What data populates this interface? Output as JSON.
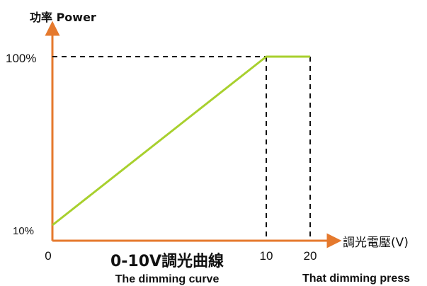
{
  "colors": {
    "axis": "#e5792d",
    "curve": "#a8d02e",
    "guide": "#111111"
  },
  "chart_data": {
    "type": "line",
    "title": "0-10V調光曲線",
    "subtitle": "The dimming curve",
    "ylabel": "功率 Power",
    "xlabel": "調光電壓(V)",
    "xlabel_secondary": "That dimming press",
    "x_ticks": [
      "0",
      "10",
      "20"
    ],
    "y_ticks": [
      "10%",
      "100%"
    ],
    "xlim": [
      0,
      20
    ],
    "ylim": [
      10,
      100
    ],
    "series": [
      {
        "x": [
          0,
          10,
          20
        ],
        "y": [
          10,
          100,
          100
        ]
      }
    ],
    "guides": [
      {
        "type": "vertical",
        "x": 10
      },
      {
        "type": "vertical",
        "x": 20
      },
      {
        "type": "horizontal",
        "y": 100
      }
    ],
    "grid": false
  }
}
